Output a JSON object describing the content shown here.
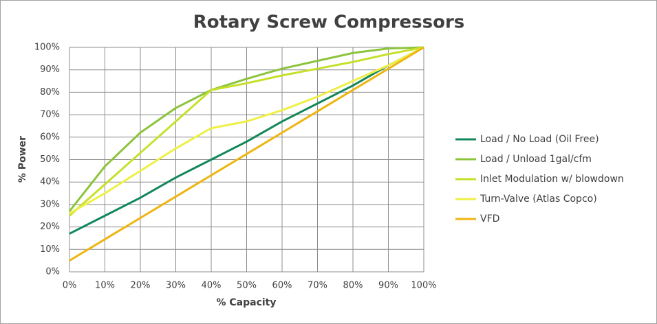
{
  "chart_data": {
    "type": "line",
    "title": "Rotary Screw Compressors",
    "x_label": "% Capacity",
    "y_label": "% Power",
    "x": [
      0,
      10,
      20,
      30,
      40,
      50,
      60,
      70,
      80,
      90,
      100
    ],
    "series": [
      {
        "name": "Load / No Load (Oil Free)",
        "color": "#12875a",
        "values": [
          17,
          25,
          33,
          42,
          50,
          58,
          67,
          75,
          83,
          92,
          100
        ]
      },
      {
        "name": "Load / Unload 1gal/cfm",
        "color": "#8cc43c",
        "values": [
          27,
          47,
          62,
          73,
          81,
          86,
          90.5,
          94,
          97.5,
          99.5,
          100
        ]
      },
      {
        "name": "Inlet Modulation w/ blowdown",
        "color": "#c6e02a",
        "values": [
          25,
          39,
          53,
          67,
          81,
          84,
          87.5,
          90.5,
          93.5,
          97,
          100
        ]
      },
      {
        "name": "Turn-Valve (Atlas Copco)",
        "color": "#eef046",
        "values": [
          26,
          35,
          45,
          55,
          64,
          67,
          72,
          78,
          85,
          92,
          100
        ]
      },
      {
        "name": "VFD",
        "color": "#eeb410",
        "values": [
          5,
          14.5,
          24,
          33.5,
          43,
          52.5,
          62,
          71.5,
          81,
          90.5,
          100
        ]
      }
    ],
    "xlim": [
      0,
      100
    ],
    "xticks": [
      {
        "value": 0,
        "label": "0%"
      },
      {
        "value": 10,
        "label": "10%"
      },
      {
        "value": 20,
        "label": "20%"
      },
      {
        "value": 30,
        "label": "30%"
      },
      {
        "value": 40,
        "label": "40%"
      },
      {
        "value": 50,
        "label": "50%"
      },
      {
        "value": 60,
        "label": "60%"
      },
      {
        "value": 70,
        "label": "70%"
      },
      {
        "value": 80,
        "label": "80%"
      },
      {
        "value": 90,
        "label": "90%"
      },
      {
        "value": 100,
        "label": "100%"
      }
    ],
    "ylim": [
      0,
      100
    ],
    "yticks": [
      {
        "value": 0,
        "label": "0%"
      },
      {
        "value": 10,
        "label": "10%"
      },
      {
        "value": 20,
        "label": "20%"
      },
      {
        "value": 30,
        "label": "30%"
      },
      {
        "value": 40,
        "label": "40%"
      },
      {
        "value": 50,
        "label": "50%"
      },
      {
        "value": 60,
        "label": "60%"
      },
      {
        "value": 70,
        "label": "70%"
      },
      {
        "value": 80,
        "label": "80%"
      },
      {
        "value": 90,
        "label": "90%"
      },
      {
        "value": 100,
        "label": "100%"
      }
    ],
    "grid": true,
    "legend": "right"
  }
}
